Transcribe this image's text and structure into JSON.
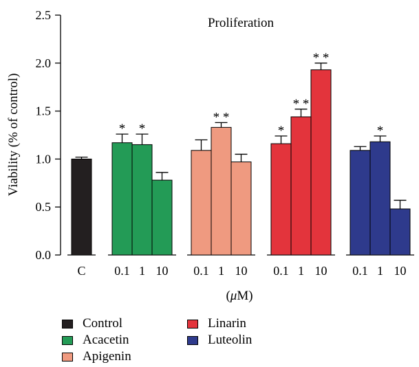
{
  "chart_data": {
    "type": "bar",
    "title": "Proliferation",
    "xlabel": "(μM)",
    "ylabel": "Viability (% of control)",
    "ylim": [
      0,
      2.5
    ],
    "yticks": [
      "0.0",
      "0.5",
      "1.0",
      "1.5",
      "2.0",
      "2.5"
    ],
    "grid": false,
    "legend_position": "bottom",
    "groups": [
      {
        "name": "Control",
        "color": "#231f20",
        "bars": [
          {
            "label": "C",
            "value": 1.0,
            "error": 0.02,
            "sig": ""
          }
        ]
      },
      {
        "name": "Acacetin",
        "color": "#239b56",
        "bars": [
          {
            "label": "0.1",
            "value": 1.17,
            "error": 0.09,
            "sig": "*"
          },
          {
            "label": "1",
            "value": 1.15,
            "error": 0.11,
            "sig": "*"
          },
          {
            "label": "10",
            "value": 0.78,
            "error": 0.08,
            "sig": ""
          }
        ]
      },
      {
        "name": "Apigenin",
        "color": "#ef9a80",
        "bars": [
          {
            "label": "0.1",
            "value": 1.09,
            "error": 0.11,
            "sig": ""
          },
          {
            "label": "1",
            "value": 1.33,
            "error": 0.05,
            "sig": "**"
          },
          {
            "label": "10",
            "value": 0.97,
            "error": 0.08,
            "sig": ""
          }
        ]
      },
      {
        "name": "Linarin",
        "color": "#e3343c",
        "bars": [
          {
            "label": "0.1",
            "value": 1.16,
            "error": 0.08,
            "sig": "*"
          },
          {
            "label": "1",
            "value": 1.44,
            "error": 0.08,
            "sig": "**"
          },
          {
            "label": "10",
            "value": 1.93,
            "error": 0.07,
            "sig": "**"
          }
        ]
      },
      {
        "name": "Luteolin",
        "color": "#2e3a8c",
        "bars": [
          {
            "label": "0.1",
            "value": 1.09,
            "error": 0.04,
            "sig": ""
          },
          {
            "label": "1",
            "value": 1.18,
            "error": 0.06,
            "sig": "*"
          },
          {
            "label": "10",
            "value": 0.48,
            "error": 0.09,
            "sig": ""
          }
        ]
      }
    ]
  },
  "legend": [
    {
      "label": "Control",
      "color": "#231f20"
    },
    {
      "label": "Acacetin",
      "color": "#239b56"
    },
    {
      "label": "Apigenin",
      "color": "#ef9a80"
    },
    {
      "label": "Linarin",
      "color": "#e3343c"
    },
    {
      "label": "Luteolin",
      "color": "#2e3a8c"
    }
  ]
}
